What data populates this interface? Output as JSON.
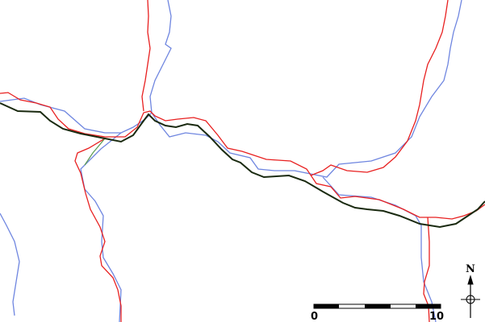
{
  "map": {
    "colors": {
      "main_road": "#1a2a10",
      "road": "#e82020",
      "river": "#6f86e0",
      "track": "#5a9a50"
    },
    "scale_bar": {
      "start_label": "0",
      "end_label": "10"
    },
    "north_arrow": {
      "label": "N"
    }
  }
}
